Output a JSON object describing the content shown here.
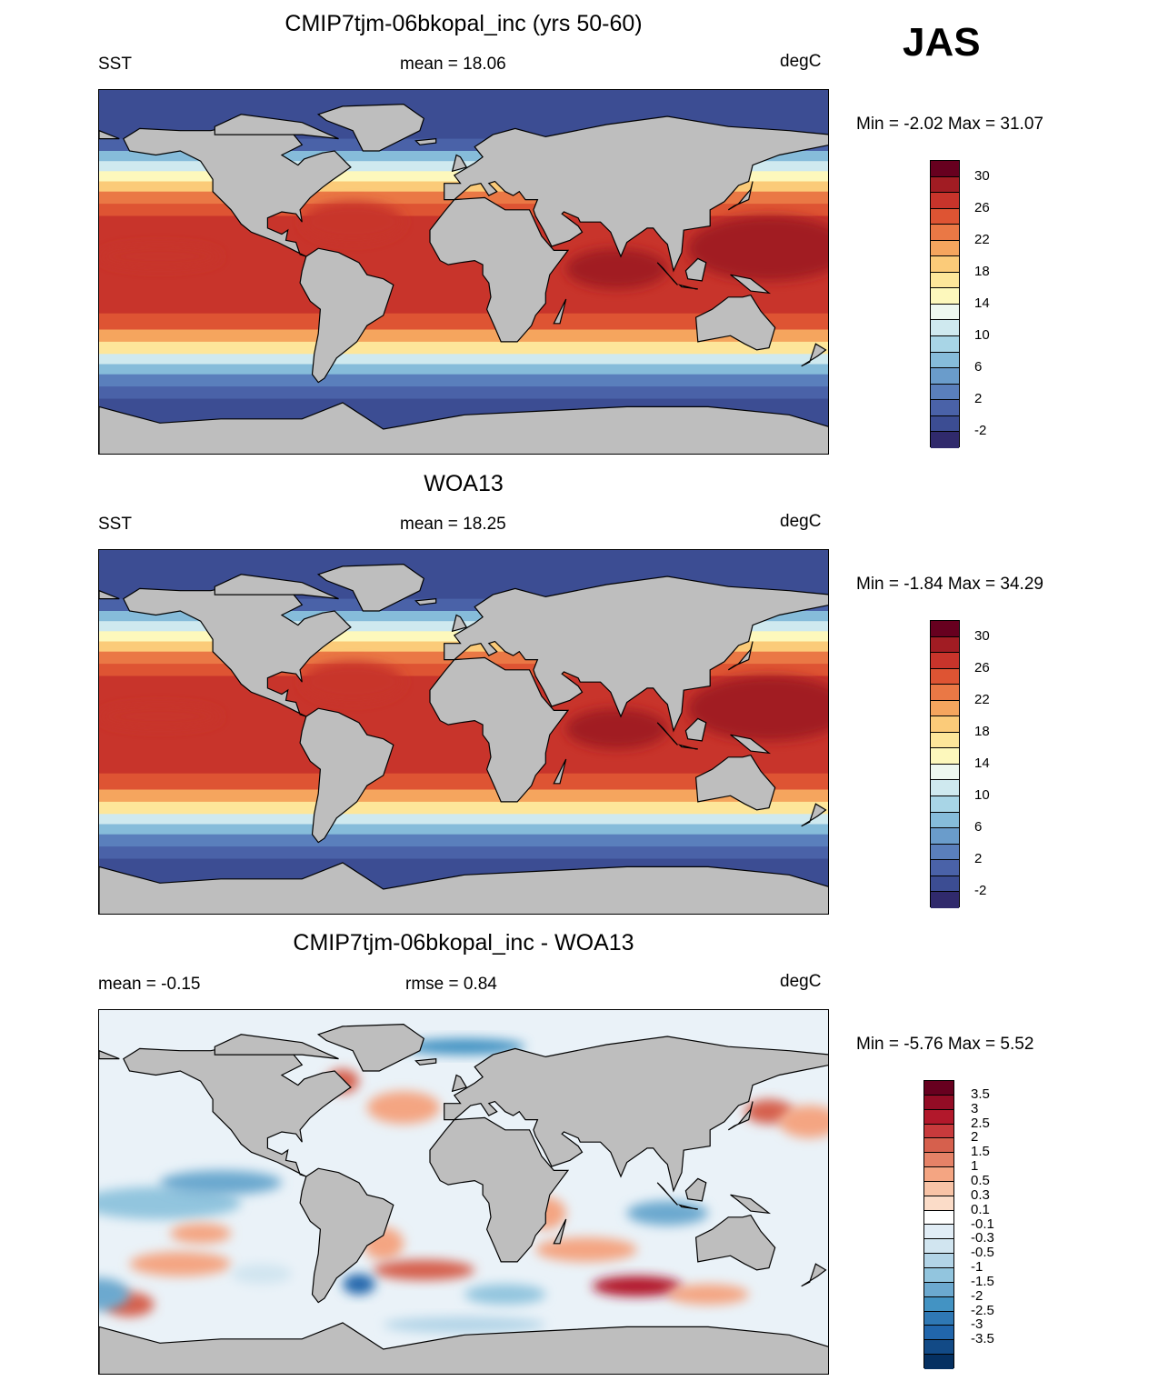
{
  "season": "JAS",
  "panels": [
    {
      "id": "model",
      "title": "CMIP7tjm-06bkopal_inc (yrs 50-60)",
      "left_label": "SST",
      "center_label": "mean =  18.06",
      "right_label": "degC",
      "minmax": "Min =  -2.02 Max =  31.07",
      "palette": "sst"
    },
    {
      "id": "obs",
      "title": "WOA13",
      "left_label": "SST",
      "center_label": "mean =  18.25",
      "right_label": "degC",
      "minmax": "Min =  -1.84 Max =  34.29",
      "palette": "sst"
    },
    {
      "id": "diff",
      "title": "CMIP7tjm-06bkopal_inc - WOA13",
      "left_label": "mean =  -0.15",
      "center_label": "rmse =   0.84",
      "right_label": "degC",
      "minmax": "Min =  -5.76 Max =   5.52",
      "palette": "diff"
    }
  ],
  "sst_colorbar": {
    "labels": [
      "30",
      "26",
      "22",
      "18",
      "14",
      "10",
      "6",
      "2",
      "-2"
    ],
    "colors": [
      "#67001f",
      "#a11c23",
      "#c8342b",
      "#de5433",
      "#ea7845",
      "#f5a55e",
      "#fbcb79",
      "#fde69a",
      "#fdf8bc",
      "#eef8f0",
      "#cfe9ef",
      "#a8d5e6",
      "#86bcda",
      "#6a9ccb",
      "#5a7fbc",
      "#4a62a8",
      "#3c4d93",
      "#302a6c"
    ]
  },
  "diff_colorbar": {
    "labels": [
      "3.5",
      "3",
      "2.5",
      "2",
      "1.5",
      "1",
      "0.5",
      "0.3",
      "0.1",
      "-0.1",
      "-0.3",
      "-0.5",
      "-1",
      "-1.5",
      "-2",
      "-2.5",
      "-3",
      "-3.5"
    ],
    "colors": [
      "#67001f",
      "#930c25",
      "#b2182b",
      "#c83a3c",
      "#d6604d",
      "#e58267",
      "#f4a582",
      "#f8c3a6",
      "#fbdcc8",
      "#ffffff",
      "#e1edf6",
      "#d1e5f0",
      "#b2d4e7",
      "#92c5de",
      "#6ca9cf",
      "#4393c3",
      "#2f78b4",
      "#2166ac",
      "#124a86",
      "#053061"
    ]
  }
}
